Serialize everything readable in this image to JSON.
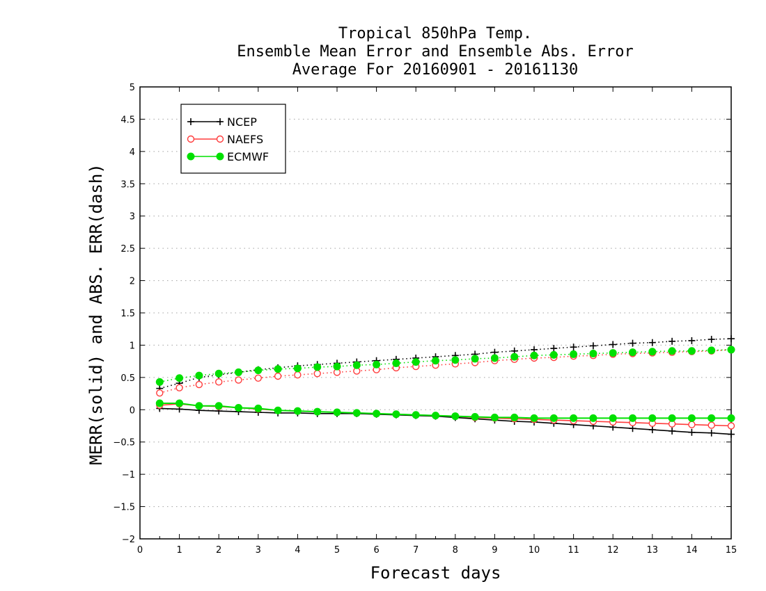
{
  "chart_data": {
    "type": "line",
    "title": "Tropical 850hPa Temp.",
    "subtitle": [
      "Ensemble Mean Error and Ensemble Abs. Error",
      "Average For 20160901 - 20161130"
    ],
    "xlabel": "Forecast days",
    "ylabel": "MERR(solid) and ABS. ERR(dash)",
    "xlim": [
      0,
      15
    ],
    "ylim": [
      -2,
      5
    ],
    "xticks": [
      "0",
      "1",
      "2",
      "3",
      "4",
      "5",
      "6",
      "7",
      "8",
      "9",
      "10",
      "11",
      "12",
      "13",
      "14",
      "15"
    ],
    "yticks": [
      "5",
      "4.5",
      "4",
      "3.5",
      "3",
      "2.5",
      "2",
      "1.5",
      "1",
      "0.5",
      "0",
      "-0.5",
      "-1",
      "-1.5",
      "-2"
    ],
    "grid": true,
    "legend_position": "top-left",
    "x": [
      0.5,
      1,
      1.5,
      2,
      2.5,
      3,
      3.5,
      4,
      4.5,
      5,
      5.5,
      6,
      6.5,
      7,
      7.5,
      8,
      8.5,
      9,
      9.5,
      10,
      10.5,
      11,
      11.5,
      12,
      12.5,
      13,
      13.5,
      14,
      14.5,
      15
    ],
    "series": [
      {
        "name": "NCEP",
        "color": "#000000",
        "marker": "plus",
        "merr": [
          0.02,
          0.01,
          -0.01,
          -0.02,
          -0.03,
          -0.04,
          -0.05,
          -0.05,
          -0.06,
          -0.06,
          -0.06,
          -0.07,
          -0.08,
          -0.09,
          -0.1,
          -0.12,
          -0.14,
          -0.16,
          -0.18,
          -0.19,
          -0.21,
          -0.23,
          -0.25,
          -0.27,
          -0.29,
          -0.31,
          -0.33,
          -0.35,
          -0.36,
          -0.38
        ],
        "abs_err": [
          0.33,
          0.41,
          0.5,
          0.54,
          0.58,
          0.62,
          0.65,
          0.68,
          0.7,
          0.72,
          0.74,
          0.76,
          0.78,
          0.8,
          0.82,
          0.84,
          0.86,
          0.89,
          0.91,
          0.93,
          0.95,
          0.97,
          0.99,
          1.01,
          1.03,
          1.04,
          1.06,
          1.07,
          1.09,
          1.1
        ]
      },
      {
        "name": "NAEFS",
        "color": "#ff3b3b",
        "marker": "open-circle",
        "merr": [
          0.07,
          0.09,
          0.06,
          0.05,
          0.03,
          0.01,
          -0.01,
          -0.02,
          -0.03,
          -0.04,
          -0.05,
          -0.06,
          -0.07,
          -0.08,
          -0.09,
          -0.1,
          -0.12,
          -0.13,
          -0.14,
          -0.15,
          -0.16,
          -0.17,
          -0.18,
          -0.19,
          -0.2,
          -0.21,
          -0.22,
          -0.23,
          -0.24,
          -0.25
        ],
        "abs_err": [
          0.26,
          0.34,
          0.39,
          0.43,
          0.46,
          0.49,
          0.52,
          0.54,
          0.56,
          0.58,
          0.6,
          0.62,
          0.65,
          0.67,
          0.69,
          0.71,
          0.73,
          0.76,
          0.78,
          0.8,
          0.81,
          0.83,
          0.84,
          0.86,
          0.87,
          0.88,
          0.89,
          0.9,
          0.91,
          0.93
        ]
      },
      {
        "name": "ECMWF",
        "color": "#00e000",
        "marker": "filled-circle",
        "merr": [
          0.1,
          0.1,
          0.06,
          0.06,
          0.03,
          0.02,
          -0.01,
          -0.02,
          -0.03,
          -0.04,
          -0.05,
          -0.06,
          -0.07,
          -0.08,
          -0.09,
          -0.1,
          -0.11,
          -0.12,
          -0.12,
          -0.13,
          -0.13,
          -0.13,
          -0.13,
          -0.13,
          -0.13,
          -0.13,
          -0.13,
          -0.13,
          -0.13,
          -0.13
        ],
        "abs_err": [
          0.43,
          0.49,
          0.53,
          0.56,
          0.58,
          0.61,
          0.63,
          0.64,
          0.66,
          0.67,
          0.69,
          0.7,
          0.72,
          0.74,
          0.76,
          0.77,
          0.79,
          0.8,
          0.82,
          0.84,
          0.85,
          0.86,
          0.87,
          0.88,
          0.89,
          0.9,
          0.91,
          0.91,
          0.92,
          0.93
        ]
      }
    ]
  }
}
